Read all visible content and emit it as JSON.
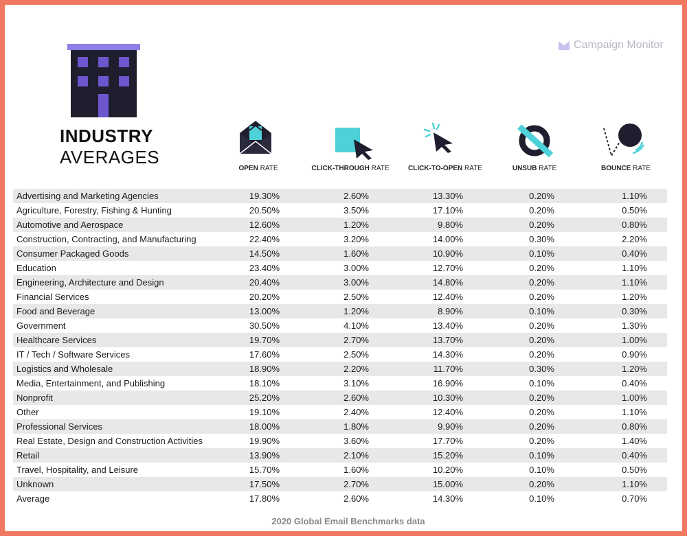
{
  "title": {
    "line1": "INDUSTRY",
    "line2": "AVERAGES"
  },
  "brand": {
    "name": "Campaign Monitor",
    "logo_icon": "campaign-monitor-logo-icon"
  },
  "columns": [
    {
      "bold": "OPEN",
      "rest": " RATE",
      "icon": "envelope-icon"
    },
    {
      "bold": "CLICK-THROUGH",
      "rest": " RATE",
      "icon": "cursor-square-icon"
    },
    {
      "bold": "CLICK-TO-OPEN",
      "rest": " RATE",
      "icon": "cursor-click-icon"
    },
    {
      "bold": "UNSUB",
      "rest": " RATE",
      "icon": "unsub-icon"
    },
    {
      "bold": "BOUNCE",
      "rest": " RATE",
      "icon": "bounce-ball-icon"
    }
  ],
  "rows": [
    {
      "industry": "Advertising and Marketing Agencies",
      "open": "19.30%",
      "ctr": "2.60%",
      "cto": "13.30%",
      "unsub": "0.20%",
      "bounce": "1.10%"
    },
    {
      "industry": "Agriculture, Forestry, Fishing & Hunting",
      "open": "20.50%",
      "ctr": "3.50%",
      "cto": "17.10%",
      "unsub": "0.20%",
      "bounce": "0.50%"
    },
    {
      "industry": "Automotive and Aerospace",
      "open": "12.60%",
      "ctr": "1.20%",
      "cto": "9.80%",
      "unsub": "0.20%",
      "bounce": "0.80%"
    },
    {
      "industry": "Construction, Contracting, and Manufacturing",
      "open": "22.40%",
      "ctr": "3.20%",
      "cto": "14.00%",
      "unsub": "0.30%",
      "bounce": "2.20%"
    },
    {
      "industry": "Consumer Packaged Goods",
      "open": "14.50%",
      "ctr": "1.60%",
      "cto": "10.90%",
      "unsub": "0.10%",
      "bounce": "0.40%"
    },
    {
      "industry": "Education",
      "open": "23.40%",
      "ctr": "3.00%",
      "cto": "12.70%",
      "unsub": "0.20%",
      "bounce": "1.10%"
    },
    {
      "industry": "Engineering, Architecture and Design",
      "open": "20.40%",
      "ctr": "3.00%",
      "cto": "14.80%",
      "unsub": "0.20%",
      "bounce": "1.10%"
    },
    {
      "industry": "Financial Services",
      "open": "20.20%",
      "ctr": "2.50%",
      "cto": "12.40%",
      "unsub": "0.20%",
      "bounce": "1.20%"
    },
    {
      "industry": "Food and Beverage",
      "open": "13.00%",
      "ctr": "1.20%",
      "cto": "8.90%",
      "unsub": "0.10%",
      "bounce": "0.30%"
    },
    {
      "industry": "Government",
      "open": "30.50%",
      "ctr": "4.10%",
      "cto": "13.40%",
      "unsub": "0.20%",
      "bounce": "1.30%"
    },
    {
      "industry": "Healthcare Services",
      "open": "19.70%",
      "ctr": "2.70%",
      "cto": "13.70%",
      "unsub": "0.20%",
      "bounce": "1.00%"
    },
    {
      "industry": "IT / Tech / Software Services",
      "open": "17.60%",
      "ctr": "2.50%",
      "cto": "14.30%",
      "unsub": "0.20%",
      "bounce": "0.90%"
    },
    {
      "industry": "Logistics and Wholesale",
      "open": "18.90%",
      "ctr": "2.20%",
      "cto": "11.70%",
      "unsub": "0.30%",
      "bounce": "1.20%"
    },
    {
      "industry": "Media, Entertainment, and Publishing",
      "open": "18.10%",
      "ctr": "3.10%",
      "cto": "16.90%",
      "unsub": "0.10%",
      "bounce": "0.40%"
    },
    {
      "industry": "Nonprofit",
      "open": "25.20%",
      "ctr": "2.60%",
      "cto": "10.30%",
      "unsub": "0.20%",
      "bounce": "1.00%"
    },
    {
      "industry": "Other",
      "open": "19.10%",
      "ctr": "2.40%",
      "cto": "12.40%",
      "unsub": "0.20%",
      "bounce": "1.10%"
    },
    {
      "industry": "Professional Services",
      "open": "18.00%",
      "ctr": "1.80%",
      "cto": "9.90%",
      "unsub": "0.20%",
      "bounce": "0.80%"
    },
    {
      "industry": "Real Estate, Design and Construction Activities",
      "open": "19.90%",
      "ctr": "3.60%",
      "cto": "17.70%",
      "unsub": "0.20%",
      "bounce": "1.40%"
    },
    {
      "industry": "Retail",
      "open": "13.90%",
      "ctr": "2.10%",
      "cto": "15.20%",
      "unsub": "0.10%",
      "bounce": "0.40%"
    },
    {
      "industry": "Travel, Hospitality, and Leisure",
      "open": "15.70%",
      "ctr": "1.60%",
      "cto": "10.20%",
      "unsub": "0.10%",
      "bounce": "0.50%"
    },
    {
      "industry": "Unknown",
      "open": "17.50%",
      "ctr": "2.70%",
      "cto": "15.00%",
      "unsub": "0.20%",
      "bounce": "1.10%"
    },
    {
      "industry": "Average",
      "open": "17.80%",
      "ctr": "2.60%",
      "cto": "14.30%",
      "unsub": "0.10%",
      "bounce": "0.70%"
    }
  ],
  "footer": "2020 Global Email Benchmarks data",
  "colors": {
    "border": "#f07860",
    "building": "#1e1e2e",
    "accent_purple": "#6e56cf",
    "accent_teal": "#4fd1d9",
    "row_shade": "#e8e8e8"
  }
}
